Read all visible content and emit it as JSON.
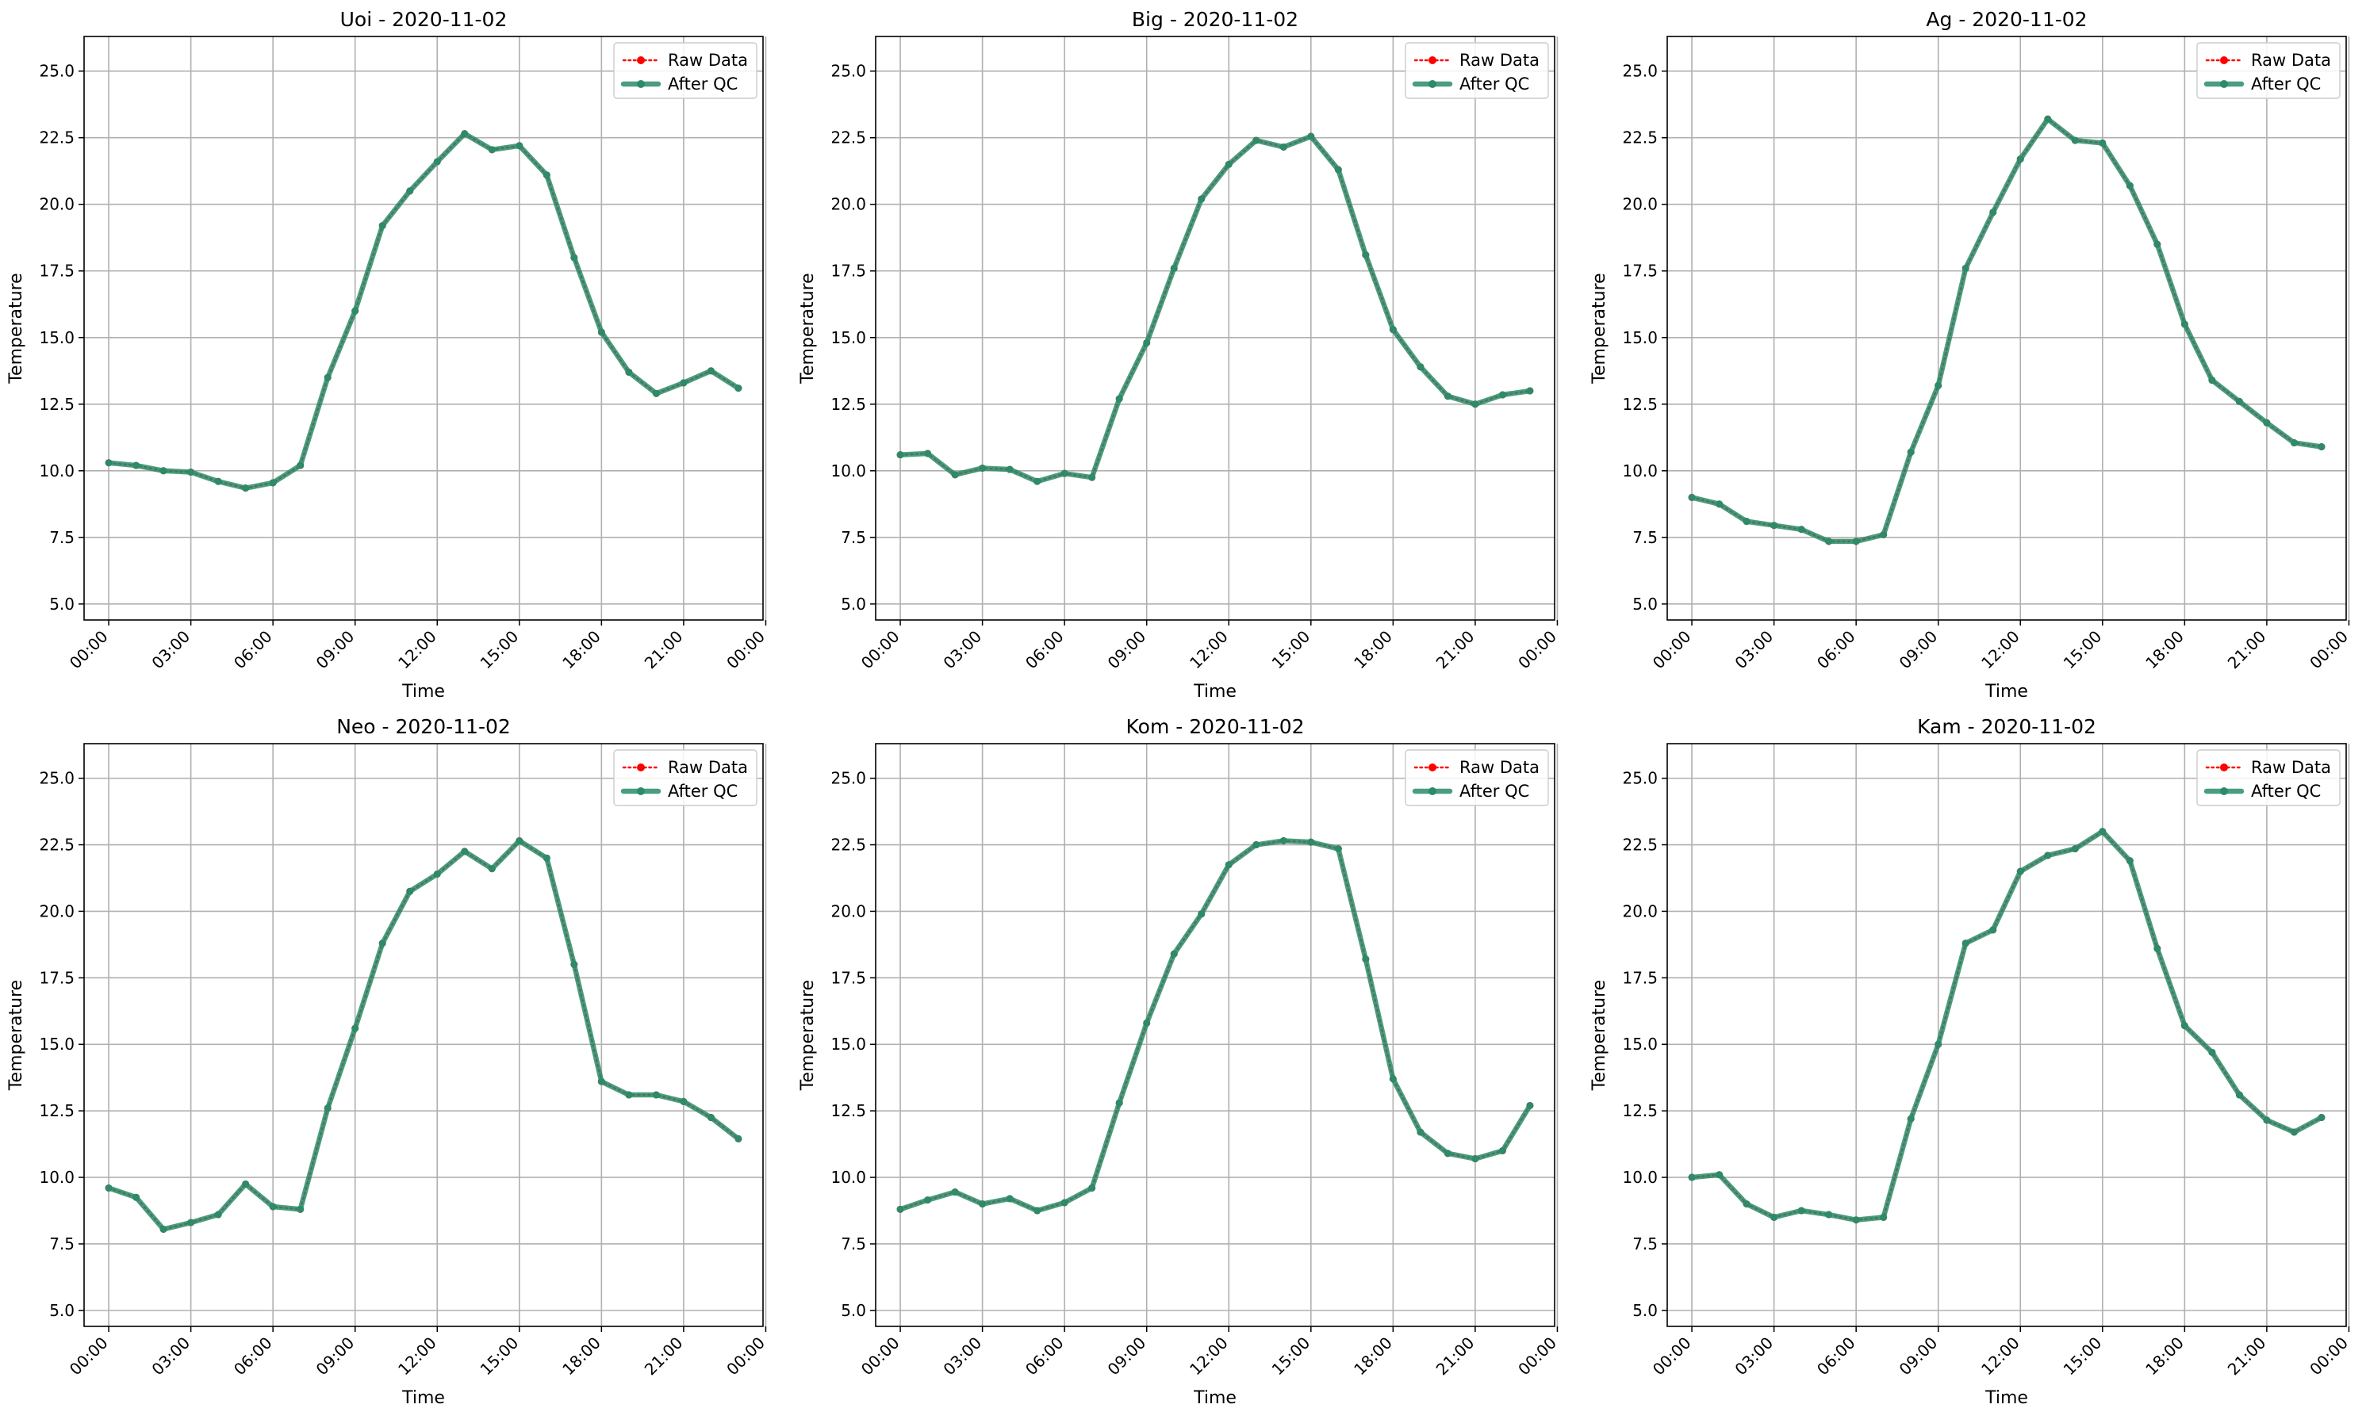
{
  "colors": {
    "raw": "#ff0000",
    "qc": "#2a8c6a",
    "grid": "#b0b0b0",
    "axis": "#000000"
  },
  "chart_data": [
    {
      "type": "line",
      "title": "Uoi - 2020-11-02",
      "xlabel": "Time",
      "ylabel": "Temperature",
      "ylim": [
        4.4,
        26.3
      ],
      "xlim": [
        -0.9,
        23.9
      ],
      "yticks": [
        "5.0",
        "7.5",
        "10.0",
        "12.5",
        "15.0",
        "17.5",
        "20.0",
        "22.5",
        "25.0"
      ],
      "xticks": [
        "00:00",
        "03:00",
        "06:00",
        "09:00",
        "12:00",
        "15:00",
        "18:00",
        "21:00",
        "00:00"
      ],
      "grid": true,
      "legend": "upper-right",
      "x": [
        0,
        1,
        2,
        3,
        4,
        5,
        6,
        7,
        8,
        9,
        10,
        11,
        12,
        13,
        14,
        15,
        16,
        17,
        18,
        19,
        20,
        21,
        22,
        23
      ],
      "series": [
        {
          "name": "Raw Data",
          "values": [
            10.3,
            10.2,
            10.0,
            9.95,
            9.6,
            9.35,
            9.55,
            10.2,
            13.5,
            16.0,
            19.2,
            20.5,
            21.6,
            22.65,
            22.05,
            22.2,
            21.1,
            18.0,
            15.2,
            13.7,
            12.9,
            13.3,
            13.75,
            13.1
          ]
        },
        {
          "name": "After QC",
          "values": [
            10.3,
            10.2,
            10.0,
            9.95,
            9.6,
            9.35,
            9.55,
            10.2,
            13.5,
            16.0,
            19.2,
            20.5,
            21.6,
            22.65,
            22.05,
            22.2,
            21.1,
            18.0,
            15.2,
            13.7,
            12.9,
            13.3,
            13.75,
            13.1
          ]
        }
      ]
    },
    {
      "type": "line",
      "title": "Big - 2020-11-02",
      "xlabel": "Time",
      "ylabel": "Temperature",
      "ylim": [
        4.4,
        26.3
      ],
      "xlim": [
        -0.9,
        23.9
      ],
      "yticks": [
        "5.0",
        "7.5",
        "10.0",
        "12.5",
        "15.0",
        "17.5",
        "20.0",
        "22.5",
        "25.0"
      ],
      "xticks": [
        "00:00",
        "03:00",
        "06:00",
        "09:00",
        "12:00",
        "15:00",
        "18:00",
        "21:00",
        "00:00"
      ],
      "grid": true,
      "legend": "upper-right",
      "x": [
        0,
        1,
        2,
        3,
        4,
        5,
        6,
        7,
        8,
        9,
        10,
        11,
        12,
        13,
        14,
        15,
        16,
        17,
        18,
        19,
        20,
        21,
        22,
        23
      ],
      "series": [
        {
          "name": "Raw Data",
          "values": [
            10.6,
            10.65,
            9.85,
            10.1,
            10.05,
            9.6,
            9.9,
            9.75,
            12.7,
            14.8,
            17.6,
            20.2,
            21.5,
            22.4,
            22.15,
            22.55,
            21.3,
            18.1,
            15.3,
            13.9,
            12.8,
            12.5,
            12.85,
            13.0
          ]
        },
        {
          "name": "After QC",
          "values": [
            10.6,
            10.65,
            9.85,
            10.1,
            10.05,
            9.6,
            9.9,
            9.75,
            12.7,
            14.8,
            17.6,
            20.2,
            21.5,
            22.4,
            22.15,
            22.55,
            21.3,
            18.1,
            15.3,
            13.9,
            12.8,
            12.5,
            12.85,
            13.0
          ]
        }
      ]
    },
    {
      "type": "line",
      "title": "Ag - 2020-11-02",
      "xlabel": "Time",
      "ylabel": "Temperature",
      "ylim": [
        4.4,
        26.3
      ],
      "xlim": [
        -0.9,
        23.9
      ],
      "yticks": [
        "5.0",
        "7.5",
        "10.0",
        "12.5",
        "15.0",
        "17.5",
        "20.0",
        "22.5",
        "25.0"
      ],
      "xticks": [
        "00:00",
        "03:00",
        "06:00",
        "09:00",
        "12:00",
        "15:00",
        "18:00",
        "21:00",
        "00:00"
      ],
      "grid": true,
      "legend": "upper-right",
      "x": [
        0,
        1,
        2,
        3,
        4,
        5,
        6,
        7,
        8,
        9,
        10,
        11,
        12,
        13,
        14,
        15,
        16,
        17,
        18,
        19,
        20,
        21,
        22,
        23
      ],
      "series": [
        {
          "name": "Raw Data",
          "values": [
            9.0,
            8.75,
            8.1,
            7.95,
            7.8,
            7.35,
            7.35,
            7.6,
            10.7,
            13.2,
            17.6,
            19.7,
            21.7,
            23.2,
            22.4,
            22.3,
            20.7,
            18.5,
            15.5,
            13.4,
            12.6,
            11.8,
            11.05,
            10.9
          ]
        },
        {
          "name": "After QC",
          "values": [
            9.0,
            8.75,
            8.1,
            7.95,
            7.8,
            7.35,
            7.35,
            7.6,
            10.7,
            13.2,
            17.6,
            19.7,
            21.7,
            23.2,
            22.4,
            22.3,
            20.7,
            18.5,
            15.5,
            13.4,
            12.6,
            11.8,
            11.05,
            10.9
          ]
        }
      ]
    },
    {
      "type": "line",
      "title": "Neo - 2020-11-02",
      "xlabel": "Time",
      "ylabel": "Temperature",
      "ylim": [
        4.4,
        26.3
      ],
      "xlim": [
        -0.9,
        23.9
      ],
      "yticks": [
        "5.0",
        "7.5",
        "10.0",
        "12.5",
        "15.0",
        "17.5",
        "20.0",
        "22.5",
        "25.0"
      ],
      "xticks": [
        "00:00",
        "03:00",
        "06:00",
        "09:00",
        "12:00",
        "15:00",
        "18:00",
        "21:00",
        "00:00"
      ],
      "grid": true,
      "legend": "upper-right",
      "x": [
        0,
        1,
        2,
        3,
        4,
        5,
        6,
        7,
        8,
        9,
        10,
        11,
        12,
        13,
        14,
        15,
        16,
        17,
        18,
        19,
        20,
        21,
        22,
        23
      ],
      "series": [
        {
          "name": "Raw Data",
          "values": [
            9.6,
            9.25,
            8.05,
            8.3,
            8.6,
            9.75,
            8.9,
            8.8,
            12.6,
            15.6,
            18.8,
            20.75,
            21.4,
            22.25,
            21.6,
            22.65,
            22.0,
            18.0,
            13.6,
            13.1,
            13.1,
            12.85,
            12.25,
            11.45
          ]
        },
        {
          "name": "After QC",
          "values": [
            9.6,
            9.25,
            8.05,
            8.3,
            8.6,
            9.75,
            8.9,
            8.8,
            12.6,
            15.6,
            18.8,
            20.75,
            21.4,
            22.25,
            21.6,
            22.65,
            22.0,
            18.0,
            13.6,
            13.1,
            13.1,
            12.85,
            12.25,
            11.45
          ]
        }
      ]
    },
    {
      "type": "line",
      "title": "Kom - 2020-11-02",
      "xlabel": "Time",
      "ylabel": "Temperature",
      "ylim": [
        4.4,
        26.3
      ],
      "xlim": [
        -0.9,
        23.9
      ],
      "yticks": [
        "5.0",
        "7.5",
        "10.0",
        "12.5",
        "15.0",
        "17.5",
        "20.0",
        "22.5",
        "25.0"
      ],
      "xticks": [
        "00:00",
        "03:00",
        "06:00",
        "09:00",
        "12:00",
        "15:00",
        "18:00",
        "21:00",
        "00:00"
      ],
      "grid": true,
      "legend": "upper-right",
      "x": [
        0,
        1,
        2,
        3,
        4,
        5,
        6,
        7,
        8,
        9,
        10,
        11,
        12,
        13,
        14,
        15,
        16,
        17,
        18,
        19,
        20,
        21,
        22,
        23
      ],
      "series": [
        {
          "name": "Raw Data",
          "values": [
            8.8,
            9.15,
            9.45,
            9.0,
            9.2,
            8.75,
            9.05,
            9.6,
            12.8,
            15.8,
            18.4,
            19.9,
            21.75,
            22.5,
            22.65,
            22.6,
            22.35,
            18.2,
            13.7,
            11.7,
            10.9,
            10.7,
            11.0,
            12.7
          ]
        },
        {
          "name": "After QC",
          "values": [
            8.8,
            9.15,
            9.45,
            9.0,
            9.2,
            8.75,
            9.05,
            9.6,
            12.8,
            15.8,
            18.4,
            19.9,
            21.75,
            22.5,
            22.65,
            22.6,
            22.35,
            18.2,
            13.7,
            11.7,
            10.9,
            10.7,
            11.0,
            12.7
          ]
        }
      ]
    },
    {
      "type": "line",
      "title": "Kam - 2020-11-02",
      "xlabel": "Time",
      "ylabel": "Temperature",
      "ylim": [
        4.4,
        26.3
      ],
      "xlim": [
        -0.9,
        23.9
      ],
      "yticks": [
        "5.0",
        "7.5",
        "10.0",
        "12.5",
        "15.0",
        "17.5",
        "20.0",
        "22.5",
        "25.0"
      ],
      "xticks": [
        "00:00",
        "03:00",
        "06:00",
        "09:00",
        "12:00",
        "15:00",
        "18:00",
        "21:00",
        "00:00"
      ],
      "grid": true,
      "legend": "upper-right",
      "x": [
        0,
        1,
        2,
        3,
        4,
        5,
        6,
        7,
        8,
        9,
        10,
        11,
        12,
        13,
        14,
        15,
        16,
        17,
        18,
        19,
        20,
        21,
        22,
        23
      ],
      "series": [
        {
          "name": "Raw Data",
          "values": [
            10.0,
            10.1,
            9.0,
            8.5,
            8.75,
            8.6,
            8.4,
            8.5,
            12.2,
            15.0,
            18.8,
            19.3,
            21.5,
            22.1,
            22.35,
            23.0,
            21.9,
            18.6,
            15.7,
            14.7,
            13.1,
            12.15,
            11.7,
            12.25
          ]
        },
        {
          "name": "After QC",
          "values": [
            10.0,
            10.1,
            9.0,
            8.5,
            8.75,
            8.6,
            8.4,
            8.5,
            12.2,
            15.0,
            18.8,
            19.3,
            21.5,
            22.1,
            22.35,
            23.0,
            21.9,
            18.6,
            15.7,
            14.7,
            13.1,
            12.15,
            11.7,
            12.25
          ]
        }
      ]
    }
  ]
}
